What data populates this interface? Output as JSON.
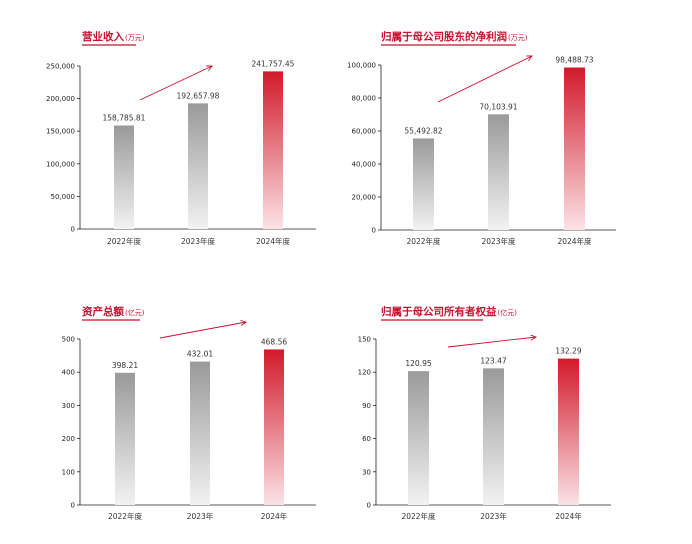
{
  "charts": [
    {
      "title": "营业收入",
      "unit": "(万元)",
      "chart_data": {
        "type": "bar",
        "categories": [
          "2022年度",
          "2023年度",
          "2024年度"
        ],
        "values": [
          158785.81,
          192657.98,
          241757.45
        ],
        "value_labels": [
          "158,785.81",
          "192,657.98",
          "241,757.45"
        ],
        "ylim": [
          0,
          250000
        ],
        "yticks": [
          0,
          50000,
          100000,
          150000,
          200000,
          250000
        ],
        "ytick_labels": [
          "0",
          "50,000",
          "100,000",
          "150,000",
          "200,000",
          "250,000"
        ],
        "highlight_index": 2
      }
    },
    {
      "title": "归属于母公司股东的净利润",
      "unit": "(万元)",
      "chart_data": {
        "type": "bar",
        "categories": [
          "2022年度",
          "2023年度",
          "2024年度"
        ],
        "values": [
          55492.82,
          70103.91,
          98488.73
        ],
        "value_labels": [
          "55,492.82",
          "70,103.91",
          "98,488.73"
        ],
        "ylim": [
          0,
          100000
        ],
        "yticks": [
          0,
          20000,
          40000,
          60000,
          80000,
          100000
        ],
        "ytick_labels": [
          "0",
          "20,000",
          "40,000",
          "60,000",
          "80,000",
          "100,000"
        ],
        "highlight_index": 2
      }
    },
    {
      "title": "资产总额",
      "unit": "(亿元)",
      "chart_data": {
        "type": "bar",
        "categories": [
          "2022年度",
          "2023年",
          "2024年"
        ],
        "values": [
          398.21,
          432.01,
          468.56
        ],
        "value_labels": [
          "398.21",
          "432.01",
          "468.56"
        ],
        "ylim": [
          0,
          500
        ],
        "yticks": [
          0,
          100,
          200,
          300,
          400,
          500
        ],
        "ytick_labels": [
          "0",
          "100",
          "200",
          "300",
          "400",
          "500"
        ],
        "highlight_index": 2
      }
    },
    {
      "title": "归属于母公司所有者权益",
      "unit": "(亿元)",
      "chart_data": {
        "type": "bar",
        "categories": [
          "2022年度",
          "2023年",
          "2024年"
        ],
        "values": [
          120.95,
          123.47,
          132.29
        ],
        "value_labels": [
          "120.95",
          "123.47",
          "132.29"
        ],
        "ylim": [
          0,
          150
        ],
        "yticks": [
          0,
          30,
          60,
          90,
          120,
          150
        ],
        "ytick_labels": [
          "0",
          "30",
          "60",
          "90",
          "120",
          "150"
        ],
        "highlight_index": 2
      }
    }
  ],
  "colors": {
    "accent": "#c8102e",
    "highlight_top": "#d11a2a",
    "highlight_bottom": "#fbe3e6",
    "gray_top": "#9a9a9a",
    "gray_bottom": "#f2f2f2",
    "axis": "#222222"
  }
}
